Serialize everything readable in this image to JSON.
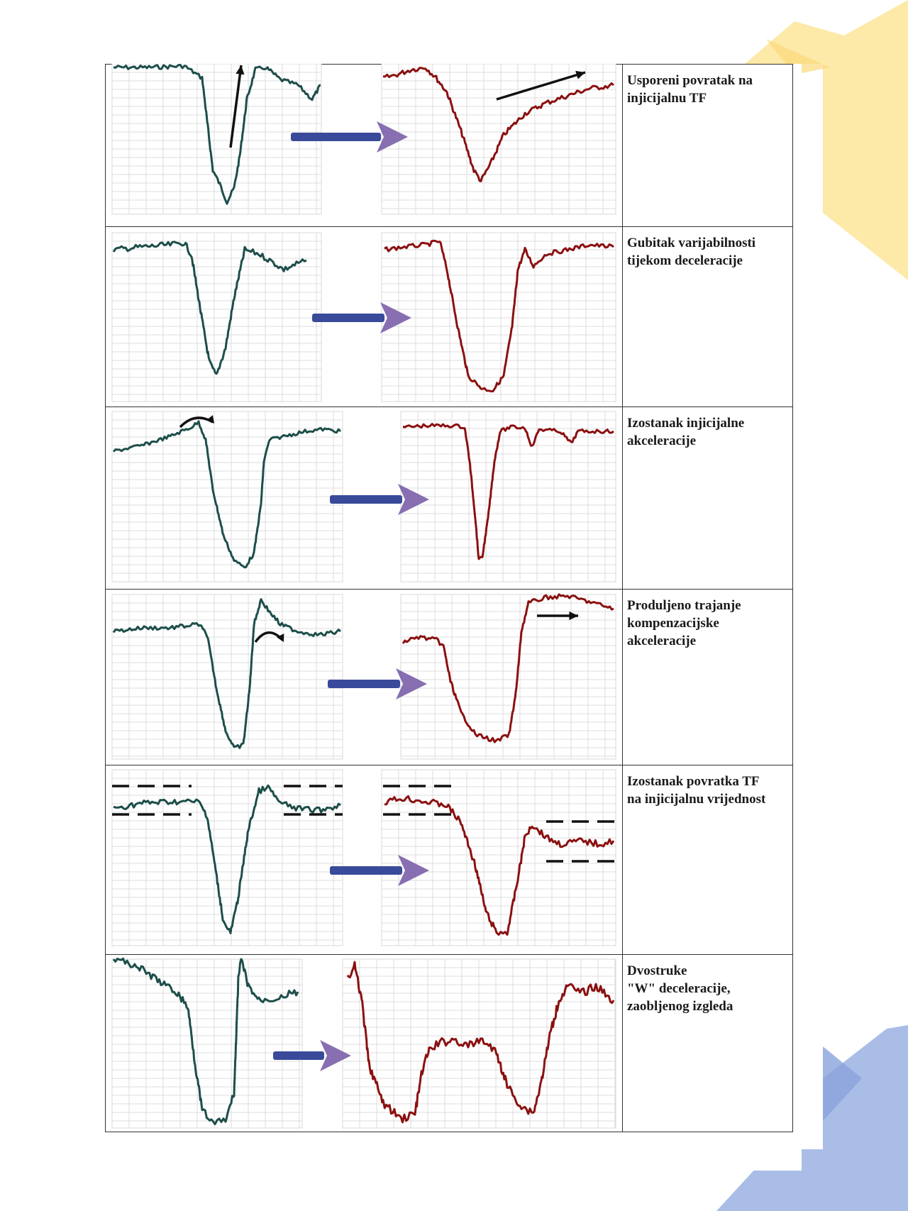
{
  "rows": [
    {
      "label": "Usporeni povratak na\ninjicijalnu TF"
    },
    {
      "label": "Gubitak varijabilnosti\ntijekom deceleracije"
    },
    {
      "label": "Izostanak injicijalne\nakceleracije"
    },
    {
      "label": "Produljeno trajanje\nkompenzacijske\nakceleracije"
    },
    {
      "label": "Izostanak povratka TF\nna injicijalnu vrijednost"
    },
    {
      "label": "Dvostruke\n\"W\" deceleracije,\nzaobljenog izgleda"
    }
  ],
  "colors": {
    "normal_trace": "#1d4e4a",
    "abnormal_trace": "#8b1010",
    "arrow_blue": "#3a4a9a",
    "deco_yellow": "#fde9a8",
    "deco_blue": "#a9bde6"
  }
}
